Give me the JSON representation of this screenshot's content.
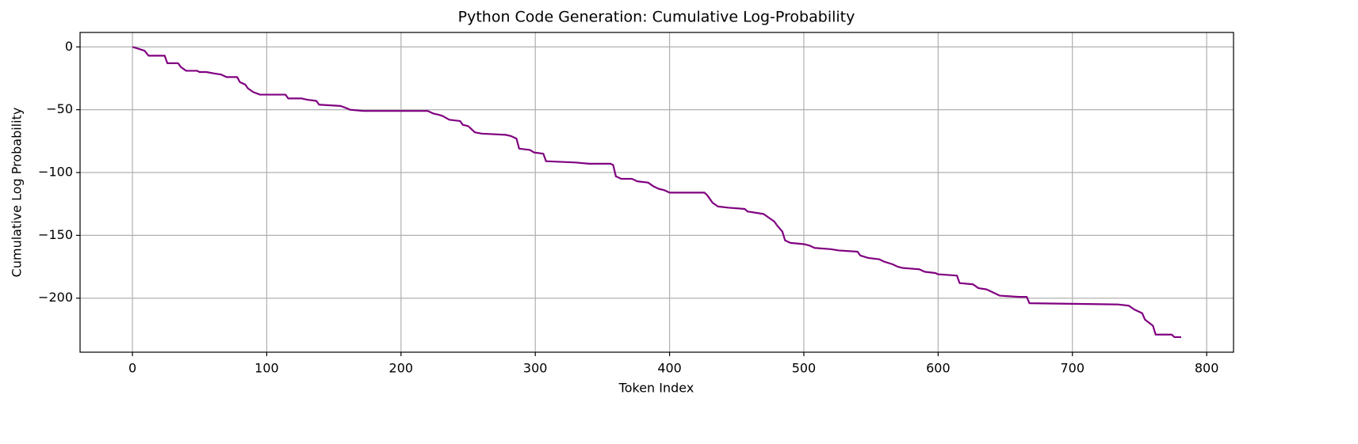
{
  "chart_data": {
    "type": "line",
    "title": "Python Code Generation: Cumulative Log-Probability",
    "x_label": "Token Index",
    "y_label": "Cumulative Log Probability",
    "color": "#800080",
    "grid": true,
    "xlim": [
      -39,
      820
    ],
    "ylim": [
      -243,
      11.5
    ],
    "xticks": [
      0,
      100,
      200,
      300,
      400,
      500,
      600,
      700,
      800
    ],
    "yticks": [
      0,
      {
        "value": -50,
        "label": "−50"
      },
      {
        "value": -100,
        "label": "−100"
      },
      {
        "value": -150,
        "label": "−150"
      },
      {
        "value": -200,
        "label": "−200"
      }
    ],
    "x": [
      0,
      3,
      6,
      9,
      12,
      24,
      26,
      34,
      36,
      40,
      48,
      50,
      55,
      60,
      66,
      70,
      78,
      80,
      84,
      86,
      90,
      95,
      114,
      116,
      126,
      130,
      137,
      139,
      155,
      160,
      162,
      172,
      220,
      224,
      228,
      231,
      236,
      244,
      246,
      250,
      252,
      255,
      260,
      278,
      282,
      286,
      288,
      296,
      299,
      306,
      308,
      330,
      340,
      356,
      358,
      360,
      364,
      372,
      376,
      384,
      388,
      392,
      396,
      400,
      426,
      428,
      432,
      436,
      444,
      456,
      458,
      470,
      474,
      478,
      480,
      484,
      486,
      490,
      500,
      504,
      508,
      520,
      526,
      540,
      542,
      548,
      556,
      560,
      566,
      570,
      574,
      586,
      590,
      598,
      600,
      614,
      616,
      626,
      630,
      636,
      642,
      646,
      660,
      666,
      668,
      734,
      742,
      746,
      752,
      754,
      760,
      762,
      774,
      776,
      781
    ],
    "values": [
      0,
      -1,
      -2,
      -3,
      -7,
      -7,
      -13,
      -13,
      -16,
      -19,
      -19,
      -20,
      -20,
      -21,
      -22,
      -24,
      -24,
      -28,
      -30,
      -33,
      -36,
      -38,
      -38,
      -41,
      -41,
      -42,
      -43,
      -46,
      -47,
      -49,
      -50,
      -51,
      -51,
      -53,
      -54,
      -55,
      -58,
      -59,
      -62,
      -63,
      -65,
      -68,
      -69,
      -70,
      -71,
      -73,
      -81,
      -82,
      -84,
      -85,
      -91,
      -92,
      -93,
      -93,
      -94,
      -103,
      -105,
      -105,
      -107,
      -108,
      -111,
      -113,
      -114,
      -116,
      -116,
      -118,
      -124,
      -127,
      -128,
      -129,
      -131,
      -133,
      -136,
      -139,
      -142,
      -147,
      -154,
      -156,
      -157,
      -158,
      -160,
      -161,
      -162,
      -163,
      -166,
      -168,
      -169,
      -171,
      -173,
      -175,
      -176,
      -177,
      -179,
      -180,
      -181,
      -182,
      -188,
      -189,
      -192,
      -193,
      -196,
      -198,
      -199,
      -199,
      -204,
      -205,
      -206,
      -209,
      -212,
      -217,
      -222,
      -229,
      -229,
      -231,
      -231
    ]
  }
}
